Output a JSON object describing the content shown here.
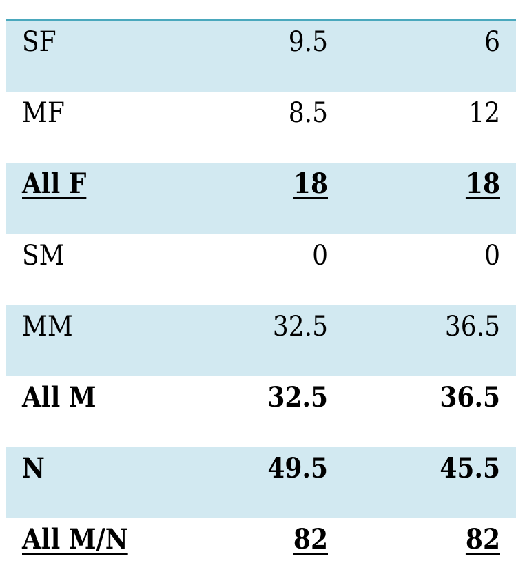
{
  "table": {
    "rows": [
      [
        "SF",
        9.5,
        6
      ],
      [
        "MF",
        8.5,
        12
      ],
      [
        "All F",
        18,
        18
      ],
      [
        "SM",
        0,
        0
      ],
      [
        "MM",
        32.5,
        36.5
      ],
      [
        "All M",
        32.5,
        36.5
      ],
      [
        "N",
        49.5,
        45.5
      ],
      [
        "All M/N",
        82,
        82
      ]
    ]
  }
}
